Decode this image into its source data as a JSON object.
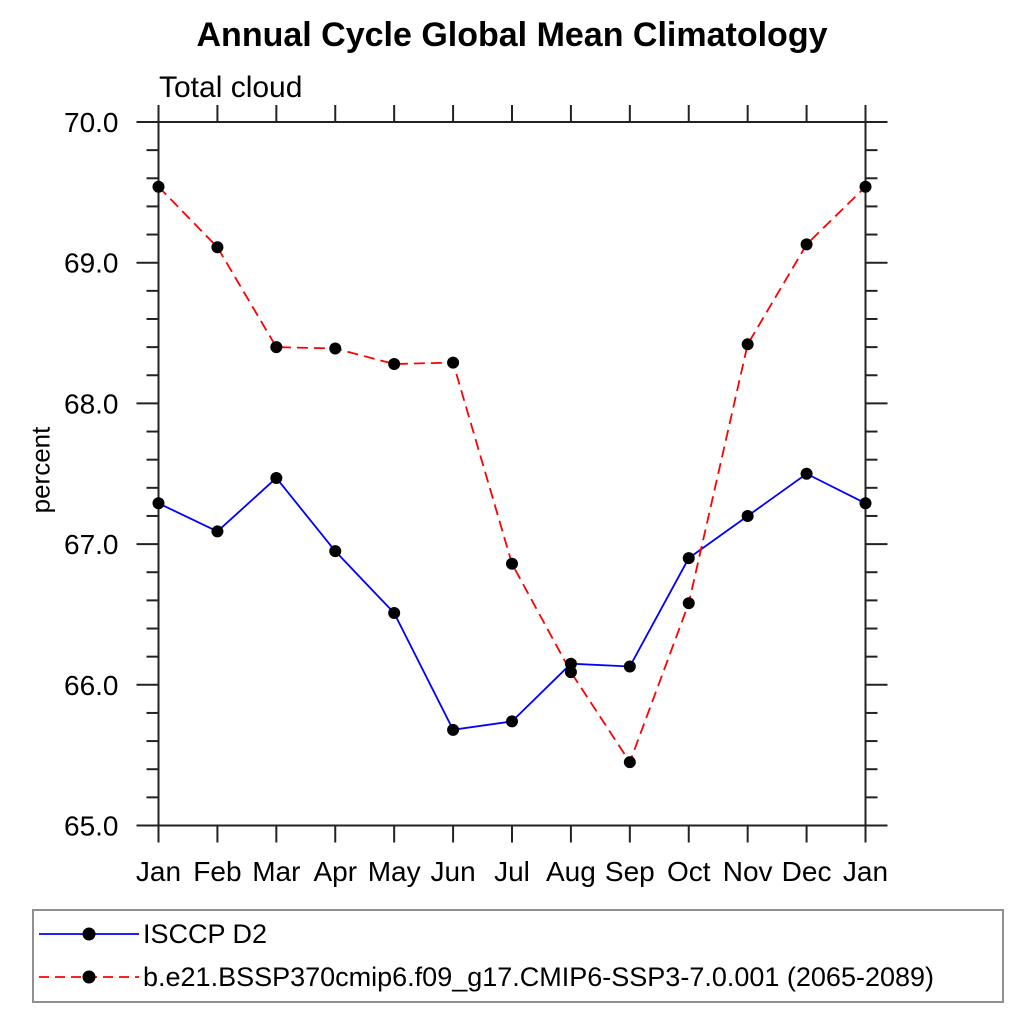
{
  "chart_data": {
    "type": "line",
    "title": "Annual Cycle Global Mean Climatology",
    "subtitle": "Total cloud",
    "ylabel": "percent",
    "xlabel": "",
    "categories": [
      "Jan",
      "Feb",
      "Mar",
      "Apr",
      "May",
      "Jun",
      "Jul",
      "Aug",
      "Sep",
      "Oct",
      "Nov",
      "Dec",
      "Jan"
    ],
    "ylim": [
      65.0,
      70.0
    ],
    "y_major_step": 1.0,
    "y_minor_step": 0.2,
    "y_tick_labels": [
      "65.0",
      "66.0",
      "67.0",
      "68.0",
      "69.0",
      "70.0"
    ],
    "grid": false,
    "legend_position": "bottom",
    "axis_color": "#222222",
    "marker_color": "#000000",
    "series": [
      {
        "name": "ISCCP D2",
        "color": "#0000ff",
        "line_style": "solid",
        "marker": "filled-circle",
        "values": [
          67.29,
          67.09,
          67.47,
          66.95,
          66.51,
          65.68,
          65.74,
          66.15,
          66.13,
          66.9,
          67.2,
          67.5,
          67.29
        ]
      },
      {
        "name": "b.e21.BSSP370cmip6.f09_g17.CMIP6-SSP3-7.0.001 (2065-2089)",
        "color": "#ff0000",
        "line_style": "dashed",
        "marker": "filled-circle",
        "values": [
          69.54,
          69.11,
          68.4,
          68.39,
          68.28,
          68.29,
          66.86,
          66.09,
          65.45,
          66.58,
          68.42,
          69.13,
          69.54
        ]
      }
    ]
  }
}
